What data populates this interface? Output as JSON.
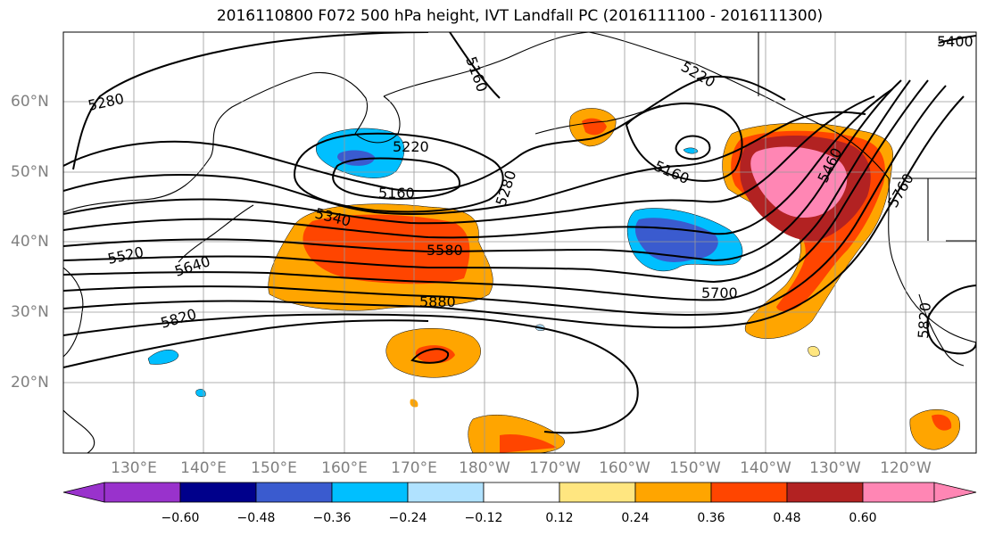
{
  "title": "2016110800 F072 500 hPa height, IVT Landfall PC (2016111100 - 2016111300)",
  "map": {
    "lat_labels": [
      "60°N",
      "50°N",
      "40°N",
      "30°N",
      "20°N"
    ],
    "lon_labels": [
      "130°E",
      "140°E",
      "150°E",
      "160°E",
      "170°E",
      "180°W",
      "170°W",
      "160°W",
      "150°W",
      "140°W",
      "130°W",
      "120°W"
    ],
    "grid_color": "#999999",
    "land_outline_color": "#000000"
  },
  "height_contours": {
    "units": "m",
    "levels_labeled": [
      "5160",
      "5220",
      "5280",
      "5340",
      "5400",
      "5460",
      "5520",
      "5580",
      "5640",
      "5700",
      "5760",
      "5820",
      "5880"
    ],
    "labels": [
      "5280",
      "5160",
      "5220",
      "5220",
      "5160",
      "5280",
      "5160",
      "5340",
      "5580",
      "5520",
      "5640",
      "5820",
      "5880",
      "5700",
      "5760",
      "5820",
      "5400",
      "5460"
    ]
  },
  "colorbar": {
    "tick_labels": [
      "−0.60",
      "−0.48",
      "−0.36",
      "−0.24",
      "−0.12",
      "0.12",
      "0.24",
      "0.36",
      "0.48",
      "0.60"
    ],
    "colors": [
      "#9932cc",
      "#00008b",
      "#3a5bcf",
      "#00bfff",
      "#b0e2ff",
      "#ffffff",
      "#ffe680",
      "#ffa500",
      "#ff4500",
      "#b22222",
      "#ff86b4"
    ]
  }
}
